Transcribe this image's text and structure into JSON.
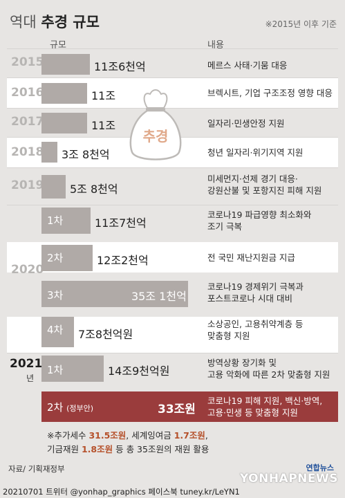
{
  "title_light": "역대",
  "title_bold": "추경 규모",
  "note": "※2015년 이후 기준",
  "headers": {
    "scale": "규모",
    "content": "내용"
  },
  "icon_label": "추경",
  "chart_data": {
    "type": "bar",
    "orientation": "horizontal",
    "unit": "조원",
    "rows": [
      {
        "year": "2015",
        "round": "",
        "value": 11.6,
        "label": "11조6천억",
        "desc": [
          "메르스 사태·기뭄 대응"
        ]
      },
      {
        "year": "2016",
        "round": "",
        "value": 11,
        "label": "11조",
        "desc": [
          "브렉시트, 기업 구조조정 영향 대응"
        ]
      },
      {
        "year": "2017",
        "round": "",
        "value": 11,
        "label": "11조",
        "desc": [
          "일자리·민생안정 지원"
        ]
      },
      {
        "year": "2018",
        "round": "",
        "value": 3.8,
        "label": "3조 8천억",
        "desc": [
          "청년 일자리·위기지역 지원"
        ]
      },
      {
        "year": "2019",
        "round": "",
        "value": 5.8,
        "label": "5조 8천억",
        "desc": [
          "미세먼지·선제 경기 대응·",
          "강원산불 및 포항지진 피해 지원"
        ]
      },
      {
        "year": "2020",
        "round": "1차",
        "value": 11.7,
        "label": "11조7천억",
        "desc": [
          "코로나19 파급영향 최소화와",
          "조기 극복"
        ]
      },
      {
        "year": "2020",
        "round": "2차",
        "value": 12.2,
        "label": "12조2천억",
        "desc": [
          "전 국민 재난지원금 지급"
        ]
      },
      {
        "year": "2020",
        "round": "3차",
        "value": 35.1,
        "label": "35조 1천억",
        "desc": [
          "코로나19 경제위기 극복과",
          "포스트코로나 시대 대비"
        ]
      },
      {
        "year": "2020",
        "round": "4차",
        "value": 7.8,
        "label": "7조8천억원",
        "desc": [
          "소상공인, 고용취약계층 등",
          "맞춤형 지원"
        ]
      },
      {
        "year": "2021",
        "round": "1차",
        "value": 14.9,
        "label": "14조9천억원",
        "desc": [
          "방역상황 장기화 및",
          "고용 악화에 따른 2차 맞춤형 지원"
        ]
      },
      {
        "year": "2021",
        "round": "2차",
        "round_note": "(정부안)",
        "value": 33,
        "label": "33조원",
        "desc": [
          "코로나19 피해 지원, 백신·방역,",
          "고용·민생 등 맞춤형 지원"
        ]
      }
    ]
  },
  "year_groups": {
    "y2020": "2020",
    "y2021": "2021",
    "y2021_sub": "년"
  },
  "footnote": {
    "l1a": "※추가세수 ",
    "l1b": "31.5조원",
    "l1c": ", 세계잉여금 ",
    "l1d": "1.7조원",
    "l1e": ",",
    "l2a": "기금재원 ",
    "l2b": "1.8조원",
    "l2c": " 등 총 35조원의 재원 활용"
  },
  "source": "자료/ 기획재정부",
  "credit": "20210701 트위터 @yonhap_graphics  페이스북 tuney.kr/LeYN1",
  "brand": {
    "logo": "연합뉴스",
    "watermark": "YONHAPNEWS"
  },
  "colors": {
    "bar": "#b0aaa7",
    "highlight_bar": "#9a3c3c",
    "accent_text": "#b5502a"
  }
}
